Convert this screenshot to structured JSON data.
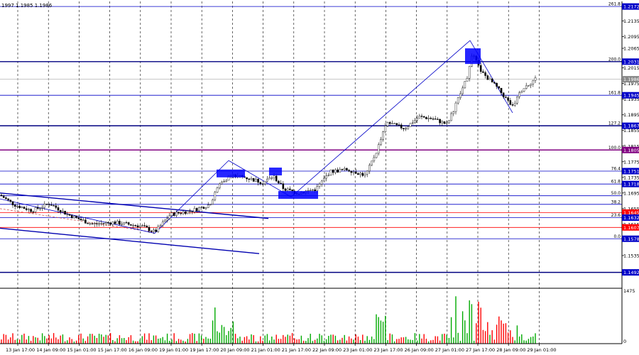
{
  "header": {
    "ohlc_text": "1997 1.1985 1.1986"
  },
  "colors": {
    "background": "#ffffff",
    "grid": "#000000",
    "fib_line": "#0000c8",
    "fib_heavy": "#000080",
    "highlight_line": "#ff0000",
    "purple_line": "#800080",
    "price_box": "#0000ff",
    "channel": "#0000b0",
    "bull_candle": "#ffffff",
    "bear_candle": "#000000",
    "volume_up": "#00aa00",
    "volume_down": "#ff0000"
  },
  "chart_data": {
    "type": "candlestick",
    "symbol": "",
    "title": "",
    "ylim": [
      1.1455,
      1.2185
    ],
    "y_ticks": [
      "1.2135",
      "1.2095",
      "1.2065",
      "1.2015",
      "1.1975",
      "1.1935",
      "1.1895",
      "1.1855",
      "1.1815",
      "1.1775",
      "1.1735",
      "1.1695",
      "1.1655",
      "1.1615",
      "1.1535"
    ],
    "x_ticks": [
      "13 Jan 17:00",
      "14 Jan 09:00",
      "15 Jan 01:00",
      "15 Jan 17:00",
      "16 Jan 09:00",
      "19 Jan 01:00",
      "19 Jan 17:00",
      "20 Jan 09:00",
      "21 Jan 01:00",
      "21 Jan 17:00",
      "22 Jan 09:00",
      "23 Jan 01:00",
      "23 Jan 17:00",
      "26 Jan 09:00",
      "27 Jan 01:00",
      "27 Jan 17:00",
      "28 Jan 09:00",
      "29 Jan 01:00"
    ],
    "price_levels": [
      {
        "value": 1.2172,
        "label": "1.2172",
        "fib": "261.8",
        "style": "normal"
      },
      {
        "value": 1.2031,
        "label": "1.2031",
        "fib": "200.0",
        "style": "heavy"
      },
      {
        "value": 1.1986,
        "label": "1.1986",
        "fib": "",
        "style": "current"
      },
      {
        "value": 1.1945,
        "label": "1.1945",
        "fib": "161.8",
        "style": "normal"
      },
      {
        "value": 1.1867,
        "label": "1.1867",
        "fib": "127.2",
        "style": "heavy"
      },
      {
        "value": 1.1805,
        "label": "1.1805",
        "fib": "100.0",
        "style": "purple"
      },
      {
        "value": 1.1751,
        "label": "1.1751",
        "fib": "76.4",
        "style": "normal"
      },
      {
        "value": 1.1718,
        "label": "1.1718",
        "fib": "61.8",
        "style": "normal"
      },
      {
        "value": 1.1688,
        "label": "",
        "fib": "50.0",
        "style": "normal"
      },
      {
        "value": 1.1666,
        "label": "",
        "fib": "38.2",
        "style": "normal"
      },
      {
        "value": 1.1645,
        "label": "1.1645",
        "fib": "",
        "style": "red"
      },
      {
        "value": 1.1632,
        "label": "1.1632",
        "fib": "23.6",
        "style": "normal"
      },
      {
        "value": 1.1607,
        "label": "1.1607",
        "fib": "",
        "style": "red"
      },
      {
        "value": 1.1578,
        "label": "1.1578",
        "fib": "0.0",
        "style": "normal"
      },
      {
        "value": 1.1492,
        "label": "1.1492",
        "fib": "",
        "style": "heavy"
      }
    ],
    "volume": {
      "max_label": "1475",
      "min_label": "0"
    }
  }
}
